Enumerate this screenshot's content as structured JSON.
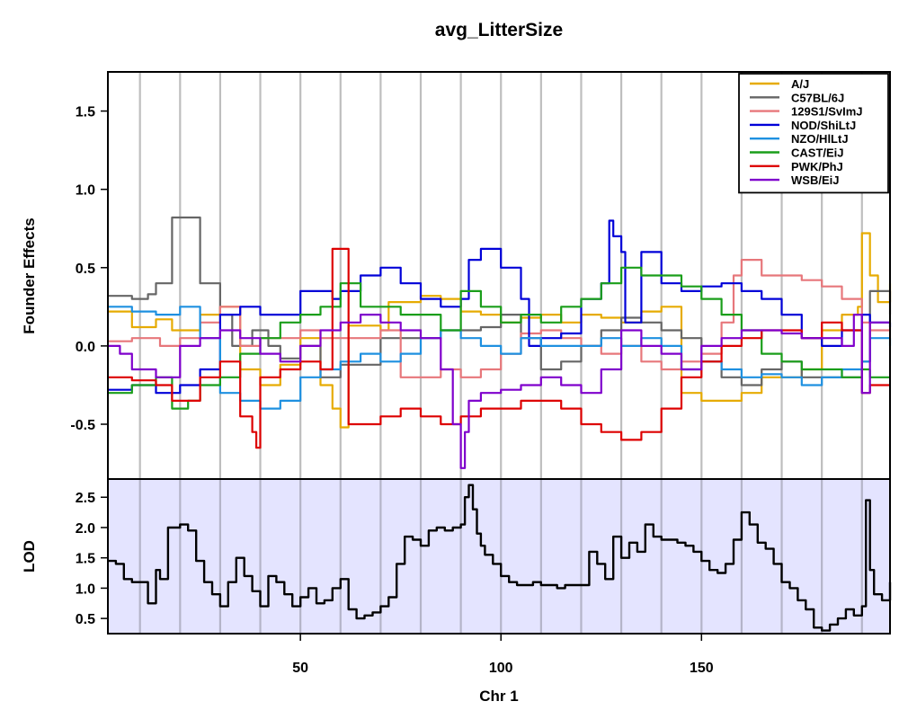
{
  "chart_data": [
    {
      "type": "line",
      "title": "avg_LitterSize",
      "ylabel": "Founder Effects",
      "xlim": [
        2,
        197
      ],
      "ylim": [
        -0.85,
        1.75
      ],
      "yticks": [
        -0.5,
        0.0,
        0.5,
        1.0,
        1.5
      ],
      "ytick_labels": [
        "-0.5",
        "0.0",
        "0.5",
        "1.0",
        "1.5"
      ],
      "vgrid": [
        10,
        20,
        30,
        40,
        50,
        60,
        70,
        80,
        90,
        100,
        110,
        120,
        130,
        140,
        150,
        160,
        170,
        180,
        190
      ],
      "grid_color": "#bebebe",
      "legend_position": "top-right",
      "series": [
        {
          "name": "A/J",
          "color": "#e6ab02",
          "x": [
            2,
            8,
            14,
            18,
            25,
            30,
            35,
            40,
            45,
            50,
            55,
            58,
            60,
            62,
            70,
            72,
            80,
            85,
            90,
            95,
            100,
            105,
            110,
            115,
            120,
            125,
            130,
            135,
            140,
            145,
            150,
            155,
            160,
            165,
            170,
            175,
            180,
            185,
            189,
            190,
            192,
            194,
            197
          ],
          "y": [
            0.22,
            0.12,
            0.17,
            0.1,
            0.2,
            0.25,
            -0.15,
            -0.25,
            -0.12,
            0.05,
            -0.25,
            -0.4,
            -0.52,
            0.13,
            0.1,
            0.28,
            0.32,
            0.3,
            0.22,
            0.2,
            0.15,
            0.18,
            0.2,
            0.15,
            0.2,
            0.18,
            0.15,
            0.22,
            0.25,
            -0.3,
            -0.35,
            -0.35,
            -0.3,
            -0.2,
            -0.2,
            -0.15,
            0.1,
            0.2,
            0.25,
            0.72,
            0.45,
            0.28,
            0.4
          ]
        },
        {
          "name": "C57BL/6J",
          "color": "#666666",
          "x": [
            2,
            8,
            12,
            14,
            18,
            22,
            25,
            30,
            33,
            38,
            42,
            45,
            50,
            55,
            60,
            65,
            70,
            75,
            80,
            85,
            90,
            95,
            100,
            105,
            110,
            115,
            120,
            125,
            130,
            135,
            140,
            145,
            150,
            155,
            160,
            165,
            170,
            175,
            180,
            185,
            190,
            192,
            197
          ],
          "y": [
            0.32,
            0.3,
            0.33,
            0.4,
            0.82,
            0.82,
            0.4,
            0.2,
            0.0,
            0.1,
            0.0,
            -0.08,
            0.0,
            -0.2,
            -0.12,
            -0.12,
            0.05,
            0.05,
            0.05,
            0.1,
            0.1,
            0.12,
            0.2,
            0.05,
            -0.15,
            -0.1,
            0.0,
            0.1,
            0.18,
            0.15,
            0.1,
            0.05,
            -0.1,
            -0.2,
            -0.25,
            -0.15,
            -0.1,
            -0.2,
            -0.2,
            -0.2,
            -0.1,
            0.35,
            0.2
          ]
        },
        {
          "name": "129S1/SvImJ",
          "color": "#e7777b",
          "x": [
            2,
            8,
            15,
            20,
            25,
            30,
            35,
            40,
            45,
            50,
            55,
            60,
            65,
            70,
            75,
            80,
            85,
            90,
            95,
            100,
            105,
            110,
            115,
            120,
            125,
            130,
            135,
            140,
            145,
            150,
            155,
            158,
            160,
            165,
            170,
            175,
            180,
            185,
            190,
            192,
            197
          ],
          "y": [
            0.03,
            0.05,
            0.0,
            0.05,
            0.15,
            0.25,
            0.0,
            0.05,
            0.05,
            0.1,
            0.05,
            0.05,
            0.05,
            0.1,
            -0.2,
            -0.2,
            -0.15,
            -0.2,
            -0.15,
            -0.05,
            0.08,
            0.1,
            0.05,
            0.0,
            -0.05,
            0.0,
            -0.1,
            -0.15,
            -0.1,
            -0.05,
            0.15,
            0.45,
            0.55,
            0.45,
            0.45,
            0.42,
            0.38,
            0.3,
            0.15,
            0.1,
            0.12
          ]
        },
        {
          "name": "NOD/ShiLtJ",
          "color": "#0000d8",
          "x": [
            2,
            8,
            14,
            20,
            25,
            30,
            35,
            40,
            45,
            50,
            55,
            58,
            60,
            65,
            70,
            75,
            80,
            85,
            90,
            92,
            95,
            100,
            105,
            107,
            110,
            115,
            120,
            125,
            127,
            128,
            130,
            131,
            135,
            140,
            145,
            150,
            155,
            160,
            165,
            170,
            175,
            180,
            185,
            190,
            192,
            197
          ],
          "y": [
            -0.28,
            -0.25,
            -0.3,
            -0.25,
            -0.15,
            0.2,
            0.25,
            0.2,
            0.2,
            0.35,
            0.35,
            0.3,
            0.35,
            0.45,
            0.5,
            0.4,
            0.3,
            0.25,
            0.3,
            0.55,
            0.62,
            0.5,
            0.3,
            0.0,
            0.05,
            0.08,
            0.3,
            0.4,
            0.8,
            0.7,
            0.6,
            0.15,
            0.6,
            0.4,
            0.35,
            0.38,
            0.4,
            0.35,
            0.3,
            0.2,
            0.05,
            0.0,
            0.1,
            0.2,
            0.15,
            0.12
          ]
        },
        {
          "name": "NZO/HlLtJ",
          "color": "#1e90e0",
          "x": [
            2,
            8,
            14,
            20,
            25,
            30,
            35,
            40,
            45,
            50,
            55,
            60,
            65,
            70,
            75,
            80,
            85,
            90,
            95,
            100,
            105,
            110,
            115,
            120,
            125,
            130,
            135,
            140,
            145,
            150,
            155,
            160,
            165,
            170,
            175,
            180,
            185,
            190,
            192,
            197
          ],
          "y": [
            0.25,
            0.22,
            0.2,
            0.25,
            0.05,
            -0.3,
            -0.35,
            -0.4,
            -0.35,
            -0.2,
            -0.15,
            -0.1,
            -0.05,
            -0.1,
            -0.05,
            0.05,
            0.1,
            0.05,
            0.0,
            -0.05,
            0.05,
            0.0,
            0.0,
            0.0,
            0.05,
            0.0,
            0.05,
            0.0,
            -0.15,
            -0.1,
            -0.15,
            -0.2,
            -0.18,
            -0.2,
            -0.25,
            -0.2,
            -0.15,
            -0.1,
            0.05,
            0.0
          ]
        },
        {
          "name": "CAST/EiJ",
          "color": "#1a9e1a",
          "x": [
            2,
            8,
            14,
            18,
            22,
            25,
            30,
            35,
            40,
            45,
            50,
            55,
            60,
            65,
            70,
            75,
            80,
            85,
            90,
            95,
            100,
            105,
            110,
            115,
            120,
            125,
            130,
            135,
            140,
            145,
            150,
            155,
            160,
            165,
            170,
            175,
            180,
            185,
            190,
            192,
            197
          ],
          "y": [
            -0.3,
            -0.25,
            -0.2,
            -0.4,
            -0.35,
            -0.25,
            -0.2,
            -0.05,
            0.05,
            0.15,
            0.2,
            0.25,
            0.4,
            0.25,
            0.25,
            0.2,
            0.2,
            0.1,
            0.35,
            0.25,
            0.15,
            0.2,
            0.15,
            0.25,
            0.3,
            0.4,
            0.5,
            0.45,
            0.45,
            0.38,
            0.3,
            0.2,
            0.1,
            -0.05,
            -0.1,
            -0.15,
            -0.15,
            -0.2,
            -0.15,
            -0.2,
            -0.2
          ]
        },
        {
          "name": "PWK/PhJ",
          "color": "#dd0000",
          "x": [
            2,
            8,
            14,
            18,
            22,
            25,
            30,
            35,
            38,
            39,
            40,
            45,
            50,
            55,
            58,
            60,
            62,
            65,
            70,
            75,
            80,
            85,
            90,
            95,
            100,
            105,
            110,
            115,
            120,
            125,
            130,
            135,
            140,
            145,
            150,
            155,
            160,
            165,
            170,
            175,
            180,
            185,
            190,
            192,
            197
          ],
          "y": [
            -0.2,
            -0.22,
            -0.25,
            -0.35,
            -0.35,
            -0.2,
            -0.1,
            -0.45,
            -0.55,
            -0.65,
            -0.2,
            -0.15,
            -0.1,
            -0.15,
            0.62,
            0.62,
            -0.5,
            -0.5,
            -0.45,
            -0.4,
            -0.45,
            -0.5,
            -0.45,
            -0.4,
            -0.4,
            -0.35,
            -0.35,
            -0.4,
            -0.5,
            -0.55,
            -0.6,
            -0.55,
            -0.4,
            -0.2,
            -0.1,
            0.0,
            0.05,
            0.1,
            0.1,
            0.05,
            0.15,
            0.1,
            -0.3,
            -0.25,
            -0.25
          ]
        },
        {
          "name": "WSB/EiJ",
          "color": "#7f00cc",
          "x": [
            2,
            5,
            8,
            14,
            20,
            25,
            30,
            35,
            40,
            45,
            50,
            55,
            60,
            65,
            70,
            75,
            80,
            85,
            88,
            90,
            91,
            92,
            95,
            100,
            105,
            110,
            115,
            120,
            125,
            130,
            135,
            140,
            145,
            150,
            155,
            160,
            165,
            170,
            175,
            180,
            185,
            188,
            190,
            192,
            197
          ],
          "y": [
            0.0,
            -0.05,
            -0.15,
            -0.2,
            0.0,
            0.05,
            0.1,
            0.05,
            -0.05,
            -0.1,
            0.0,
            0.1,
            0.15,
            0.2,
            0.15,
            0.1,
            0.05,
            -0.15,
            -0.5,
            -0.78,
            -0.55,
            -0.35,
            -0.3,
            -0.28,
            -0.25,
            -0.2,
            -0.25,
            -0.3,
            -0.15,
            0.1,
            0.0,
            -0.05,
            -0.15,
            0.0,
            0.05,
            0.1,
            0.1,
            0.08,
            0.05,
            0.05,
            0.0,
            0.2,
            -0.3,
            0.15,
            0.15
          ]
        }
      ]
    },
    {
      "type": "line",
      "ylabel": "LOD",
      "xlabel": "Chr 1",
      "xlim": [
        2,
        197
      ],
      "ylim": [
        0.25,
        2.8
      ],
      "yticks": [
        0.5,
        1.0,
        1.5,
        2.0,
        2.5
      ],
      "ytick_labels": [
        "0.5",
        "1.0",
        "1.5",
        "2.0",
        "2.5"
      ],
      "xticks": [
        50,
        100,
        150
      ],
      "xtick_labels": [
        "50",
        "100",
        "150"
      ],
      "vgrid": [
        10,
        20,
        30,
        40,
        50,
        60,
        70,
        80,
        90,
        100,
        110,
        120,
        130,
        140,
        150,
        160,
        170,
        180,
        190
      ],
      "background": "#e4e4ff",
      "series": [
        {
          "name": "",
          "color": "#000000",
          "x": [
            2,
            4,
            6,
            8,
            10,
            12,
            14,
            15,
            17,
            20,
            22,
            24,
            26,
            28,
            30,
            32,
            34,
            36,
            38,
            40,
            42,
            44,
            46,
            48,
            50,
            52,
            54,
            56,
            58,
            60,
            62,
            64,
            66,
            68,
            70,
            72,
            74,
            76,
            78,
            80,
            82,
            84,
            86,
            88,
            90,
            91,
            92,
            93,
            94,
            95,
            96,
            98,
            100,
            102,
            104,
            106,
            108,
            110,
            112,
            114,
            116,
            118,
            120,
            122,
            124,
            126,
            128,
            130,
            132,
            134,
            136,
            138,
            140,
            142,
            144,
            146,
            148,
            150,
            152,
            154,
            156,
            158,
            160,
            162,
            164,
            166,
            168,
            170,
            172,
            174,
            176,
            178,
            180,
            182,
            184,
            186,
            188,
            190,
            191,
            192,
            193,
            195,
            197
          ],
          "y": [
            1.45,
            1.4,
            1.15,
            1.1,
            1.1,
            0.75,
            1.3,
            1.15,
            2.0,
            2.05,
            1.95,
            1.45,
            1.1,
            0.9,
            0.7,
            1.1,
            1.5,
            1.2,
            0.95,
            0.7,
            1.2,
            1.1,
            0.9,
            0.7,
            0.85,
            1.0,
            0.75,
            0.8,
            1.0,
            1.15,
            0.65,
            0.5,
            0.55,
            0.6,
            0.7,
            0.85,
            1.4,
            1.85,
            1.8,
            1.7,
            1.95,
            2.0,
            1.95,
            2.0,
            2.05,
            2.5,
            2.7,
            2.3,
            1.9,
            1.7,
            1.55,
            1.4,
            1.2,
            1.1,
            1.05,
            1.05,
            1.1,
            1.05,
            1.05,
            1.0,
            1.05,
            1.05,
            1.05,
            1.6,
            1.4,
            1.15,
            1.85,
            1.5,
            1.75,
            1.6,
            2.05,
            1.85,
            1.8,
            1.8,
            1.75,
            1.7,
            1.6,
            1.45,
            1.3,
            1.25,
            1.4,
            1.8,
            2.25,
            2.05,
            1.75,
            1.65,
            1.4,
            1.1,
            1.0,
            0.8,
            0.65,
            0.35,
            0.3,
            0.4,
            0.5,
            0.65,
            0.55,
            0.7,
            2.45,
            1.3,
            0.9,
            0.8,
            1.1
          ]
        }
      ]
    }
  ]
}
